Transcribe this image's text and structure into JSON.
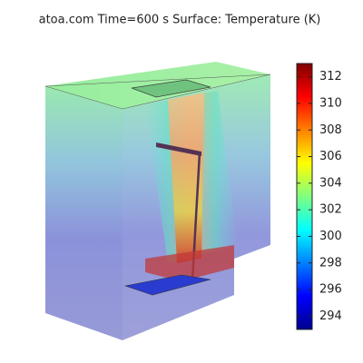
{
  "chart_data": {
    "type": "surface3d",
    "title": "atoa.com   Time=600 s Surface: Temperature (K)",
    "colorbar": {
      "clim": [
        293,
        313
      ],
      "ticks": [
        294,
        296,
        298,
        300,
        302,
        304,
        306,
        308,
        310,
        312
      ],
      "colors": [
        "#00008f",
        "#0000ff",
        "#0080ff",
        "#00ffff",
        "#80ff80",
        "#ffff00",
        "#ff8000",
        "#ff0000",
        "#800000"
      ]
    }
  }
}
